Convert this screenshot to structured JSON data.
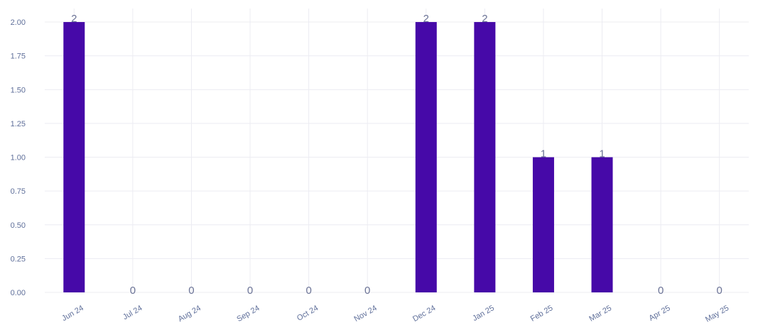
{
  "chart_data": {
    "type": "bar",
    "categories": [
      "Jun 24",
      "Jul 24",
      "Aug 24",
      "Sep 24",
      "Oct 24",
      "Nov 24",
      "Dec 24",
      "Jan 25",
      "Feb 25",
      "Mar 25",
      "Apr 25",
      "May 25"
    ],
    "values": [
      2,
      0,
      0,
      0,
      0,
      0,
      2,
      2,
      1,
      1,
      0,
      0
    ],
    "data_labels": [
      "2",
      "0",
      "0",
      "0",
      "0",
      "0",
      "2",
      "2",
      "1",
      "1",
      "0",
      "0"
    ],
    "y_ticks": [
      "0.00",
      "0.25",
      "0.50",
      "0.75",
      "1.00",
      "1.25",
      "1.50",
      "1.75",
      "2.00"
    ],
    "ylim": [
      0,
      2.1
    ],
    "grid": true,
    "legend": "none",
    "bar_color": "#4609a8",
    "tick_color": "#5f6f9a",
    "label_color": "#6b7396",
    "grid_color": "#ececf2"
  }
}
